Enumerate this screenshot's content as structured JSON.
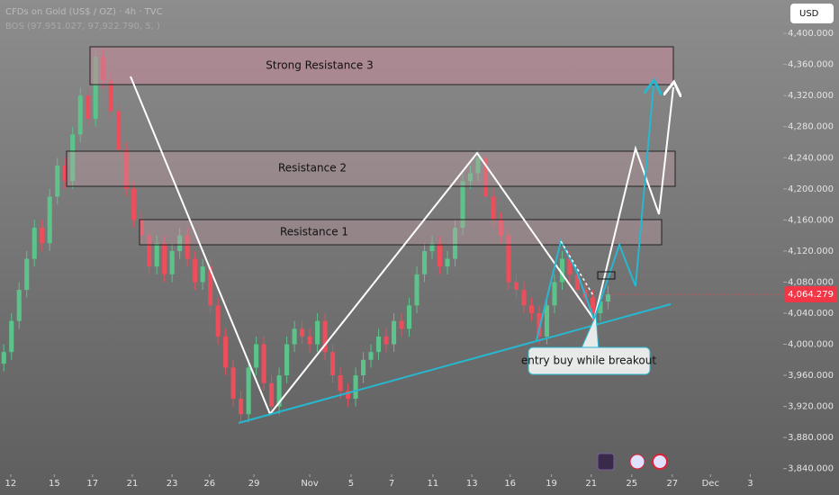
{
  "chart_data": {
    "type": "candlestick",
    "title": "CFDs on Gold (US$ / OZ) · 4h · TVC",
    "subtitle": "BOS (97,951.027, 97,922.790, 5, )",
    "currency": "USD",
    "annotations": [
      "Strong Resistance 3",
      "Resistance 2",
      "Resistance 1",
      "entry buy while breakout"
    ],
    "up_color": "#5cc38a",
    "down_color": "#ec4e5c",
    "open": [
      3975,
      3990,
      4030,
      4070,
      4110,
      4150,
      4130,
      4190,
      4230,
      4210,
      4270,
      4320,
      4290,
      4370,
      4340,
      4300,
      4250,
      4200,
      4160,
      4140,
      4100,
      4130,
      4090,
      4120,
      4140,
      4110,
      4080,
      4100,
      4050,
      4010,
      3970,
      3930,
      3910,
      3970,
      4000,
      3950,
      3920,
      3960,
      4000,
      4020,
      4010,
      4000,
      4030,
      3990,
      3960,
      3940,
      3930,
      3960,
      3980,
      3990,
      4010,
      4000,
      4030,
      4020,
      4050,
      4090,
      4120,
      4130,
      4100,
      4110,
      4150,
      4210,
      4220,
      4240,
      4190,
      4160,
      4140,
      4080,
      4070,
      4050,
      4040,
      4010,
      4050,
      4080,
      4110,
      4090,
      4070,
      4060,
      4040,
      4055
    ],
    "high": [
      4000,
      4040,
      4080,
      4120,
      4160,
      4160,
      4200,
      4240,
      4240,
      4280,
      4330,
      4330,
      4380,
      4380,
      4350,
      4310,
      4260,
      4210,
      4170,
      4150,
      4140,
      4140,
      4130,
      4150,
      4150,
      4120,
      4110,
      4110,
      4060,
      4020,
      3980,
      3940,
      3980,
      4010,
      4010,
      3960,
      3970,
      4010,
      4030,
      4030,
      4020,
      4040,
      4040,
      4000,
      3970,
      3950,
      3970,
      3990,
      4000,
      4020,
      4020,
      4040,
      4040,
      4060,
      4100,
      4130,
      4140,
      4140,
      4120,
      4160,
      4220,
      4230,
      4250,
      4250,
      4200,
      4170,
      4150,
      4090,
      4080,
      4060,
      4050,
      4060,
      4090,
      4120,
      4120,
      4100,
      4080,
      4070,
      4065,
      4075
    ],
    "low": [
      3965,
      3980,
      4020,
      4060,
      4100,
      4120,
      4120,
      4180,
      4200,
      4200,
      4260,
      4280,
      4280,
      4330,
      4290,
      4240,
      4190,
      4150,
      4130,
      4090,
      4090,
      4080,
      4080,
      4110,
      4100,
      4070,
      4070,
      4040,
      4000,
      3960,
      3920,
      3900,
      3900,
      3960,
      3940,
      3910,
      3910,
      3950,
      3990,
      4000,
      3990,
      3990,
      3980,
      3950,
      3930,
      3920,
      3920,
      3950,
      3970,
      3980,
      3990,
      3990,
      4010,
      4010,
      4040,
      4080,
      4110,
      4090,
      4090,
      4100,
      4140,
      4200,
      4210,
      4180,
      4150,
      4130,
      4070,
      4060,
      4040,
      4030,
      4000,
      4000,
      4040,
      4070,
      4080,
      4060,
      4050,
      4030,
      4030,
      4045
    ],
    "close": [
      3990,
      4030,
      4070,
      4110,
      4150,
      4130,
      4190,
      4230,
      4210,
      4270,
      4320,
      4290,
      4370,
      4340,
      4300,
      4250,
      4200,
      4160,
      4140,
      4100,
      4130,
      4090,
      4120,
      4140,
      4110,
      4080,
      4100,
      4050,
      4010,
      3970,
      3930,
      3910,
      3970,
      4000,
      3950,
      3920,
      3960,
      4000,
      4020,
      4010,
      4000,
      4030,
      3990,
      3960,
      3940,
      3930,
      3960,
      3980,
      3990,
      4010,
      4000,
      4030,
      4020,
      4050,
      4090,
      4120,
      4130,
      4100,
      4110,
      4150,
      4210,
      4220,
      4240,
      4190,
      4160,
      4140,
      4080,
      4070,
      4050,
      4040,
      4010,
      4050,
      4080,
      4110,
      4090,
      4070,
      4060,
      4040,
      4055,
      4064.279
    ],
    "last_price": {
      "value": 4064.279,
      "label": "4,064.279"
    },
    "xlim": [
      0,
      102.4
    ],
    "xticks": [
      {
        "value": 1.4,
        "label": "12"
      },
      {
        "value": 7.1,
        "label": "15"
      },
      {
        "value": 12.1,
        "label": "17"
      },
      {
        "value": 17.3,
        "label": "21"
      },
      {
        "value": 22.5,
        "label": "23"
      },
      {
        "value": 27.4,
        "label": "26"
      },
      {
        "value": 33.2,
        "label": "29"
      },
      {
        "value": 40.5,
        "label": "Nov"
      },
      {
        "value": 45.9,
        "label": "5"
      },
      {
        "value": 51.2,
        "label": "7"
      },
      {
        "value": 56.6,
        "label": "11"
      },
      {
        "value": 61.7,
        "label": "13"
      },
      {
        "value": 66.7,
        "label": "16"
      },
      {
        "value": 72.1,
        "label": "19"
      },
      {
        "value": 77.3,
        "label": "21"
      },
      {
        "value": 82.6,
        "label": "25"
      },
      {
        "value": 87.9,
        "label": "27"
      },
      {
        "value": 92.9,
        "label": "Dec"
      },
      {
        "value": 98.1,
        "label": "3"
      }
    ],
    "ylim": [
      3835,
      4443
    ],
    "yticks": [
      {
        "value": 4400,
        "label": "4,400.000"
      },
      {
        "value": 4360,
        "label": "4,360.000"
      },
      {
        "value": 4320,
        "label": "4,320.000"
      },
      {
        "value": 4280,
        "label": "4,280.000"
      },
      {
        "value": 4240,
        "label": "4,240.000"
      },
      {
        "value": 4200,
        "label": "4,200.000"
      },
      {
        "value": 4160,
        "label": "4,160.000"
      },
      {
        "value": 4120,
        "label": "4,120.000"
      },
      {
        "value": 4080,
        "label": "4,080.000"
      },
      {
        "value": 4040,
        "label": "4,040.000"
      },
      {
        "value": 4000,
        "label": "4,000.000"
      },
      {
        "value": 3960,
        "label": "3,960.000"
      },
      {
        "value": 3920,
        "label": "3,920.000"
      },
      {
        "value": 3880,
        "label": "3,880.000"
      },
      {
        "value": 3840,
        "label": "3,840.000"
      }
    ]
  }
}
